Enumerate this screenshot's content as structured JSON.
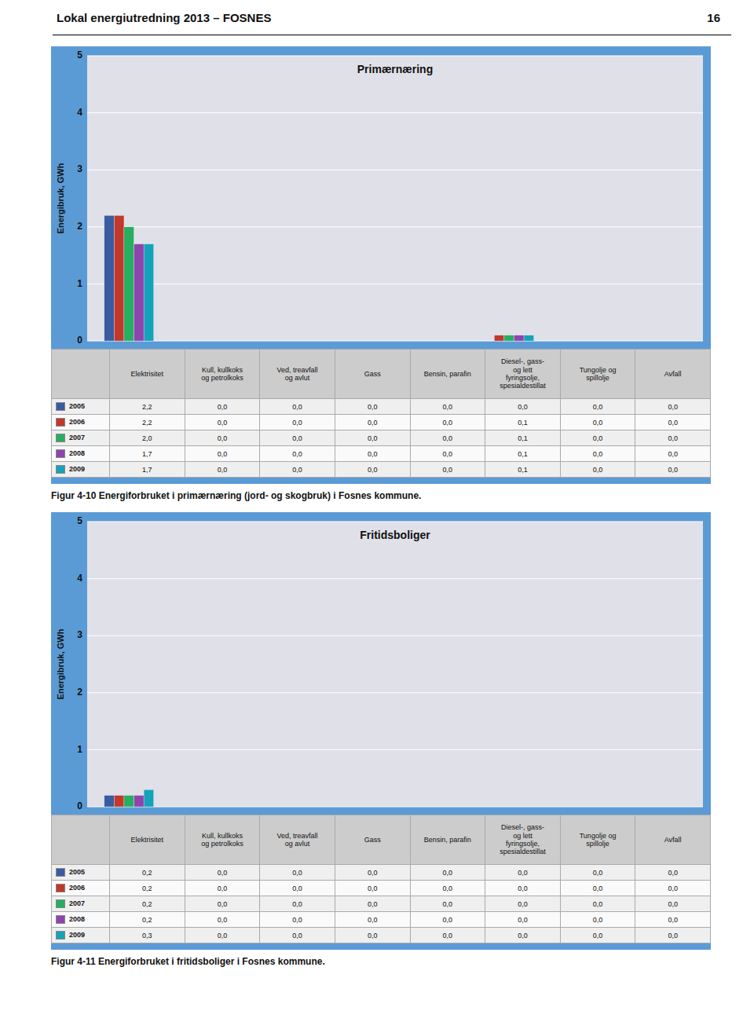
{
  "header": {
    "title": "Lokal energiutredning 2013 – FOSNES",
    "page_number": "16"
  },
  "chart_data": [
    {
      "type": "bar",
      "title": "Primærnæring",
      "ylabel": "Energibruk, GWh",
      "categories": [
        "Elektrisitet",
        "Kull, kullkoks\nog petrolkoks",
        "Ved, treavfall\nog avlut",
        "Gass",
        "Bensin, parafin",
        "Diesel-, gass-\nog lett\nfyringsolje,\nspesialdestillat",
        "Tungolje og\nspillolje",
        "Avfall"
      ],
      "series": [
        {
          "name": "2005",
          "color": "#3A5BA0",
          "values": [
            2.2,
            0.0,
            0.0,
            0.0,
            0.0,
            0.0,
            0.0,
            0.0
          ],
          "value_labels": [
            "2,2",
            "0,0",
            "0,0",
            "0,0",
            "0,0",
            "0,0",
            "0,0",
            "0,0"
          ]
        },
        {
          "name": "2006",
          "color": "#C0392B",
          "values": [
            2.2,
            0.0,
            0.0,
            0.0,
            0.0,
            0.1,
            0.0,
            0.0
          ],
          "value_labels": [
            "2,2",
            "0,0",
            "0,0",
            "0,0",
            "0,0",
            "0,1",
            "0,0",
            "0,0"
          ]
        },
        {
          "name": "2007",
          "color": "#27AE60",
          "values": [
            2.0,
            0.0,
            0.0,
            0.0,
            0.0,
            0.1,
            0.0,
            0.0
          ],
          "value_labels": [
            "2,0",
            "0,0",
            "0,0",
            "0,0",
            "0,0",
            "0,1",
            "0,0",
            "0,0"
          ]
        },
        {
          "name": "2008",
          "color": "#8E44AD",
          "values": [
            1.7,
            0.0,
            0.0,
            0.0,
            0.0,
            0.1,
            0.0,
            0.0
          ],
          "value_labels": [
            "1,7",
            "0,0",
            "0,0",
            "0,0",
            "0,0",
            "0,1",
            "0,0",
            "0,0"
          ]
        },
        {
          "name": "2009",
          "color": "#16A2B8",
          "values": [
            1.7,
            0.0,
            0.0,
            0.0,
            0.0,
            0.1,
            0.0,
            0.0
          ],
          "value_labels": [
            "1,7",
            "0,0",
            "0,0",
            "0,0",
            "0,0",
            "0,1",
            "0,0",
            "0,0"
          ]
        }
      ],
      "ylim": [
        0,
        5
      ],
      "yticks": [
        0,
        1,
        2,
        3,
        4,
        5
      ],
      "grid": true,
      "annotations": [
        "Figur 4-10 Energiforbruket i primærnæring (jord- og skogbruk) i Fosnes kommune."
      ]
    },
    {
      "type": "bar",
      "title": "Fritidsboliger",
      "ylabel": "Energibruk, GWh",
      "categories": [
        "Elektrisitet",
        "Kull, kullkoks\nog petrolkoks",
        "Ved, treavfall\nog avlut",
        "Gass",
        "Bensin, parafin",
        "Diesel-, gass-\nog lett\nfyringsolje,\nspesialdestillat",
        "Tungolje og\nspillolje",
        "Avfall"
      ],
      "series": [
        {
          "name": "2005",
          "color": "#3A5BA0",
          "values": [
            0.2,
            0.0,
            0.0,
            0.0,
            0.0,
            0.0,
            0.0,
            0.0
          ],
          "value_labels": [
            "0,2",
            "0,0",
            "0,0",
            "0,0",
            "0,0",
            "0,0",
            "0,0",
            "0,0"
          ]
        },
        {
          "name": "2006",
          "color": "#C0392B",
          "values": [
            0.2,
            0.0,
            0.0,
            0.0,
            0.0,
            0.0,
            0.0,
            0.0
          ],
          "value_labels": [
            "0,2",
            "0,0",
            "0,0",
            "0,0",
            "0,0",
            "0,0",
            "0,0",
            "0,0"
          ]
        },
        {
          "name": "2007",
          "color": "#27AE60",
          "values": [
            0.2,
            0.0,
            0.0,
            0.0,
            0.0,
            0.0,
            0.0,
            0.0
          ],
          "value_labels": [
            "0,2",
            "0,0",
            "0,0",
            "0,0",
            "0,0",
            "0,0",
            "0,0",
            "0,0"
          ]
        },
        {
          "name": "2008",
          "color": "#8E44AD",
          "values": [
            0.2,
            0.0,
            0.0,
            0.0,
            0.0,
            0.0,
            0.0,
            0.0
          ],
          "value_labels": [
            "0,2",
            "0,0",
            "0,0",
            "0,0",
            "0,0",
            "0,0",
            "0,0",
            "0,0"
          ]
        },
        {
          "name": "2009",
          "color": "#16A2B8",
          "values": [
            0.3,
            0.0,
            0.0,
            0.0,
            0.0,
            0.0,
            0.0,
            0.0
          ],
          "value_labels": [
            "0,3",
            "0,0",
            "0,0",
            "0,0",
            "0,0",
            "0,0",
            "0,0",
            "0,0"
          ]
        }
      ],
      "ylim": [
        0,
        5
      ],
      "yticks": [
        0,
        1,
        2,
        3,
        4,
        5
      ],
      "grid": true,
      "annotations": [
        "Figur 4-11 Energiforbruket i fritidsboliger i Fosnes kommune."
      ]
    }
  ]
}
